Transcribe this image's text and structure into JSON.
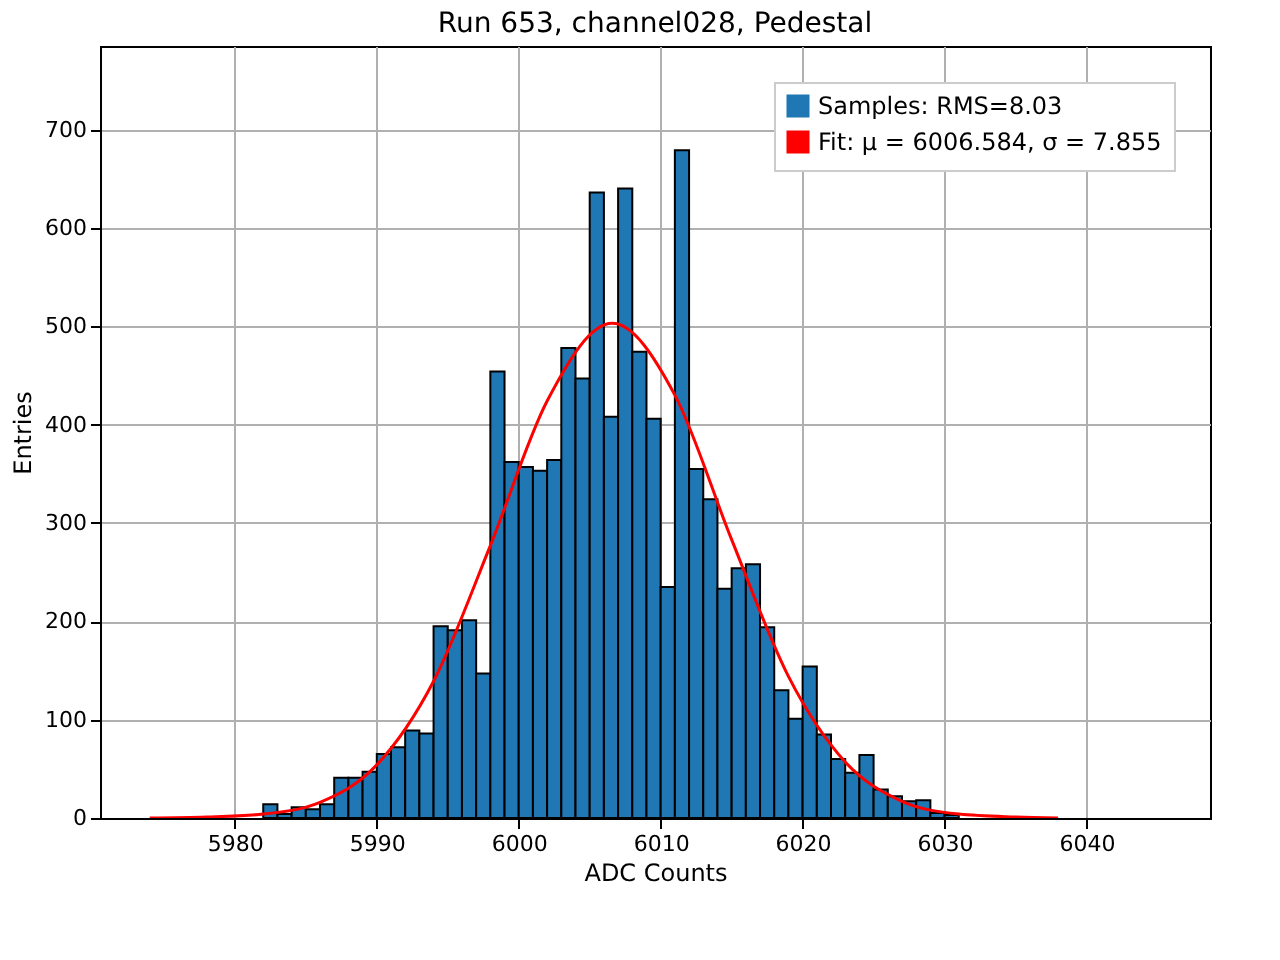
{
  "chart_data": {
    "type": "histogram",
    "title": "Run 653, channel028, Pedestal",
    "xlabel": "ADC Counts",
    "ylabel": "Entries",
    "bins": [
      5974,
      5975,
      5976,
      5977,
      5978,
      5979,
      5980,
      5981,
      5982,
      5983,
      5984,
      5985,
      5986,
      5987,
      5988,
      5989,
      5990,
      5991,
      5992,
      5993,
      5994,
      5995,
      5996,
      5997,
      5998,
      5999,
      6000,
      6001,
      6002,
      6003,
      6004,
      6005,
      6006,
      6007,
      6008,
      6009,
      6010,
      6011,
      6012,
      6013,
      6014,
      6015,
      6016,
      6017,
      6018,
      6019,
      6020,
      6021,
      6022,
      6023,
      6024,
      6025,
      6026,
      6027,
      6028,
      6029,
      6030,
      6031,
      6032,
      6033,
      6034,
      6035,
      6036,
      6037,
      6038,
      6039,
      6040,
      6041,
      6042,
      6043,
      6044,
      6045
    ],
    "series": [
      {
        "name": "Samples: RMS=8.03",
        "color": "#1f77b4",
        "values": [
          null,
          0,
          0,
          0,
          0,
          0,
          null,
          null,
          14,
          4,
          11,
          9,
          14,
          41,
          41,
          47,
          65,
          72,
          89,
          86,
          195,
          191,
          201,
          147,
          454,
          362,
          357,
          353,
          364,
          478,
          447,
          636,
          408,
          640,
          474,
          406,
          235,
          679,
          355,
          324,
          233,
          254,
          258,
          194,
          130,
          101,
          154,
          85,
          60,
          46,
          64,
          29,
          22,
          17,
          18,
          5,
          3,
          0,
          0,
          0,
          0,
          0,
          0,
          0,
          0,
          0,
          0,
          0,
          0,
          0,
          null
        ]
      },
      {
        "name": "Fit: μ = 6006.584, σ = 7.855",
        "type": "line",
        "color": "#ff0000",
        "x": [
          5974,
          5978,
          5982,
          5986,
          5990,
          5994,
          5998,
          6002,
          6006.584,
          6011,
          6015,
          6019,
          6023,
          6027,
          6031,
          6035,
          6038
        ],
        "values": [
          0,
          1,
          4,
          16,
          54,
          139,
          277,
          424,
          503,
          430,
          283,
          144,
          57,
          17,
          4,
          1,
          0
        ]
      }
    ],
    "xlim": [
      5970.5,
      6048.7
    ],
    "xticks": [
      5980,
      5990,
      6000,
      6010,
      6020,
      6030,
      6040
    ],
    "ylim": [
      0,
      785
    ],
    "yticks": [
      0,
      100,
      200,
      300,
      400,
      500,
      600,
      700
    ],
    "grid": true,
    "legend": "top right"
  }
}
